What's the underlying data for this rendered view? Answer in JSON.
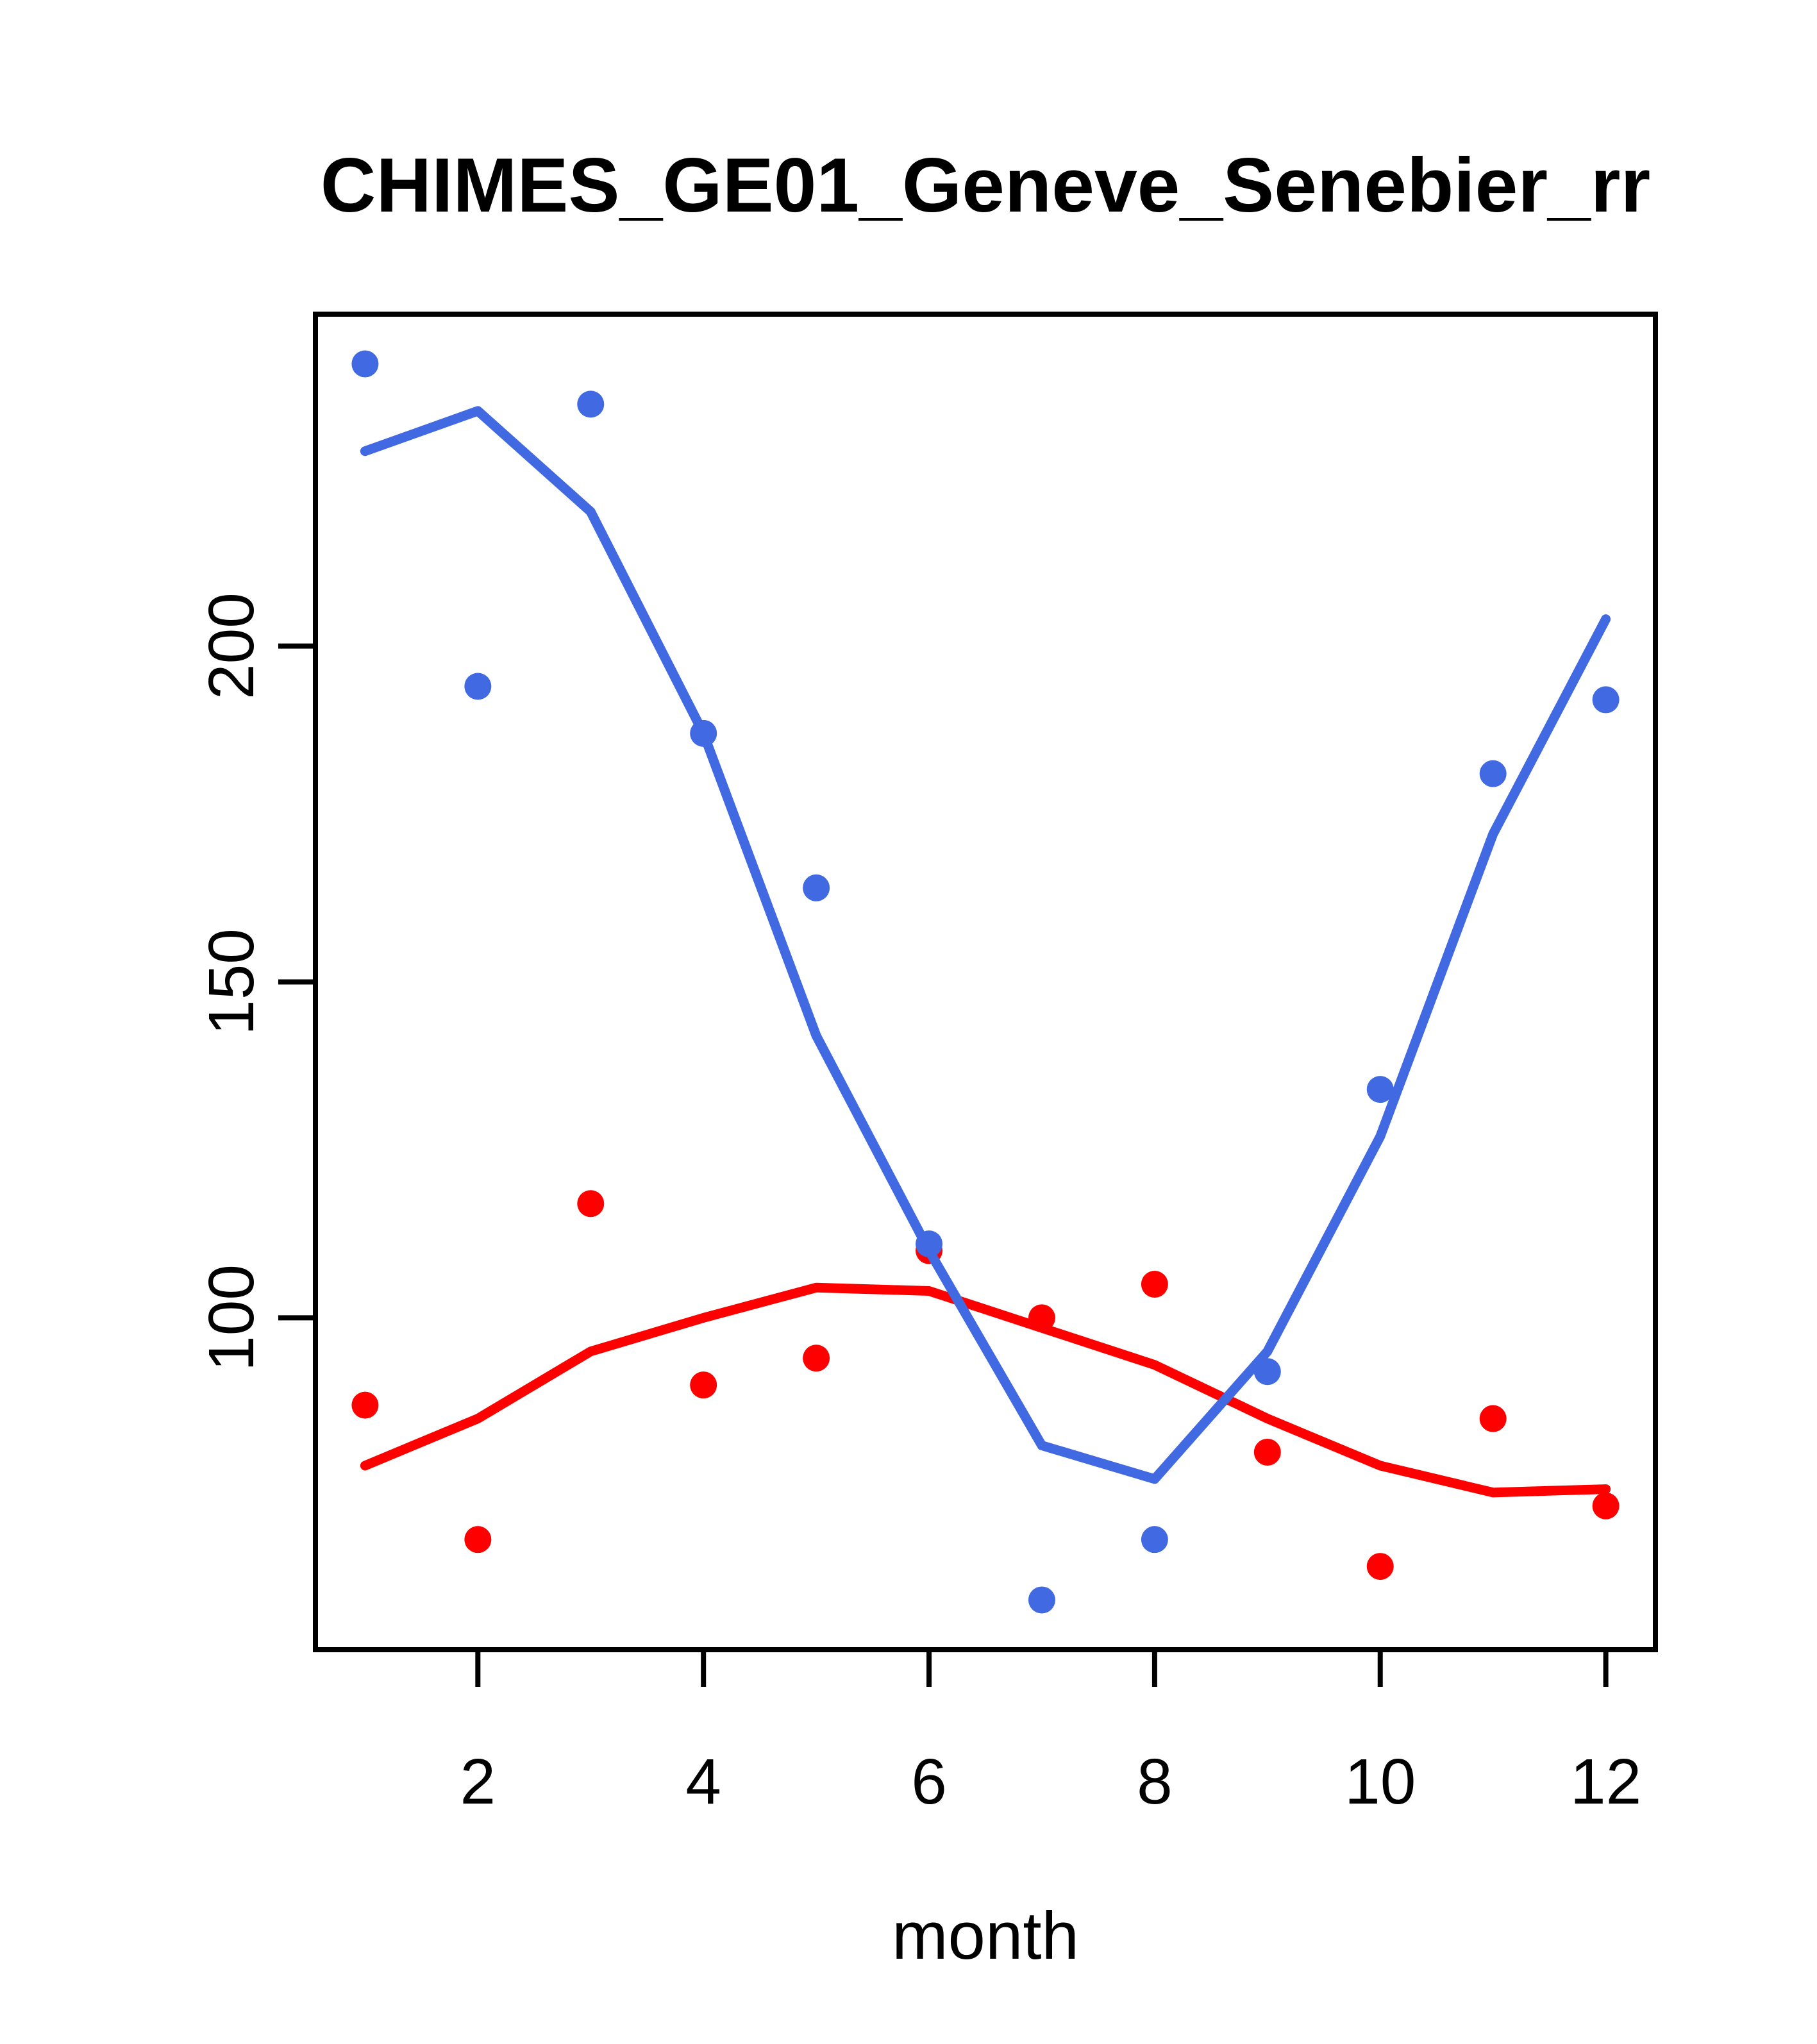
{
  "chart_data": {
    "type": "scatter",
    "title": "CHIMES_GE01_Geneve_Senebier_rr",
    "xlabel": "month",
    "ylabel": "",
    "x": [
      1,
      2,
      3,
      4,
      5,
      6,
      7,
      8,
      9,
      10,
      11,
      12
    ],
    "xlim": [
      0.56,
      12.44
    ],
    "ylim": [
      50.6,
      249.4
    ],
    "xticks": [
      2,
      4,
      6,
      8,
      10,
      12
    ],
    "xtick_labels": [
      "2",
      "4",
      "6",
      "8",
      "10",
      "12"
    ],
    "yticks": [
      100,
      150,
      200
    ],
    "ytick_labels": [
      "100",
      "150",
      "200"
    ],
    "grid": false,
    "legend_position": "none",
    "colors": {
      "series_blue": "#4169E1",
      "series_red": "#FF0000",
      "axis": "#000000",
      "background": "#FFFFFF"
    },
    "series": [
      {
        "name": "red-loess-line",
        "kind": "line",
        "color": "#FF0000",
        "values": [
          78,
          85,
          95,
          100,
          104.5,
          104,
          98.5,
          93,
          85,
          78,
          74,
          74.5
        ]
      },
      {
        "name": "red-points",
        "kind": "points",
        "color": "#FF0000",
        "values": [
          87,
          67,
          117,
          90,
          94,
          110,
          100,
          105,
          80,
          63,
          85,
          72
        ]
      },
      {
        "name": "blue-loess-line",
        "kind": "line",
        "color": "#4169E1",
        "values": [
          229,
          235,
          220,
          187,
          142,
          110,
          81,
          76,
          95,
          127,
          172,
          204
        ]
      },
      {
        "name": "blue-points",
        "kind": "points",
        "color": "#4169E1",
        "values": [
          242,
          194,
          236,
          187,
          164,
          111,
          58,
          67,
          92,
          134,
          181,
          192
        ]
      }
    ]
  }
}
